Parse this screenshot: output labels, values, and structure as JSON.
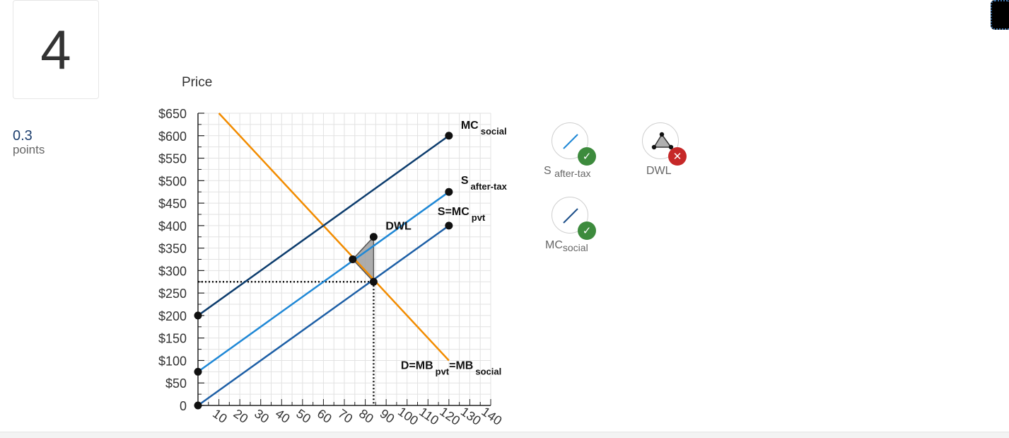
{
  "question": {
    "number": "4",
    "points_value": "0.3",
    "points_label": "points"
  },
  "tools": [
    {
      "name": "S",
      "sub": "after-tax",
      "status": "correct",
      "icon": "line-tool-icon",
      "icon_color": "#1f88d6"
    },
    {
      "name": "DWL",
      "sub": "",
      "status": "incorrect",
      "icon": "polygon-tool-icon",
      "icon_color": "#333333"
    },
    {
      "name": "MC",
      "sub": "social",
      "status": "correct",
      "icon": "line-tool-icon",
      "icon_color": "#1d4f8a"
    }
  ],
  "chart_data": {
    "type": "line",
    "ylabel": "Price",
    "xlim": [
      0,
      140
    ],
    "ylim": [
      0,
      650
    ],
    "x_ticks": [
      10,
      20,
      30,
      40,
      50,
      60,
      70,
      80,
      90,
      100,
      110,
      120,
      130,
      140
    ],
    "x_tick_labels": [
      "10",
      "20",
      "30",
      "40",
      "50",
      "60",
      "70",
      "80",
      "90",
      "100",
      "110",
      "120",
      "130",
      "140"
    ],
    "y_ticks": [
      0,
      50,
      100,
      150,
      200,
      250,
      300,
      350,
      400,
      450,
      500,
      550,
      600,
      650
    ],
    "y_tick_labels": [
      "0",
      "$50",
      "$100",
      "$150",
      "$200",
      "$250",
      "$300",
      "$350",
      "$400",
      "$450",
      "$500",
      "$550",
      "$600",
      "$650"
    ],
    "grid": true,
    "series": [
      {
        "label_parts": [
          [
            "D=MB",
            ""
          ],
          [
            "pvt",
            "sub"
          ],
          [
            "=MB",
            ""
          ],
          [
            "social",
            "sub"
          ]
        ],
        "color": "#f28c00",
        "points": [
          [
            10,
            650
          ],
          [
            120,
            100
          ]
        ],
        "endpoints": false
      },
      {
        "label_parts": [
          [
            "MC",
            ""
          ],
          [
            "social",
            "sub"
          ]
        ],
        "color": "#0d3d6e",
        "points": [
          [
            0,
            200
          ],
          [
            120,
            600
          ]
        ],
        "endpoints": true
      },
      {
        "label_parts": [
          [
            "S",
            ""
          ],
          [
            "after-tax",
            "sub"
          ]
        ],
        "color": "#1f88d6",
        "points": [
          [
            0,
            75
          ],
          [
            120,
            475
          ]
        ],
        "endpoints": true
      },
      {
        "label_parts": [
          [
            "S=MC",
            ""
          ],
          [
            "pvt",
            "sub"
          ]
        ],
        "color": "#1d5fa6",
        "points": [
          [
            0,
            0
          ],
          [
            120,
            400
          ]
        ],
        "endpoints": true
      }
    ],
    "dwl": {
      "label": "DWL",
      "points": [
        [
          74,
          325
        ],
        [
          84,
          375
        ],
        [
          84,
          275
        ]
      ],
      "fill": "#9e9e9e"
    },
    "guides": {
      "x": 84,
      "y": 275
    }
  }
}
